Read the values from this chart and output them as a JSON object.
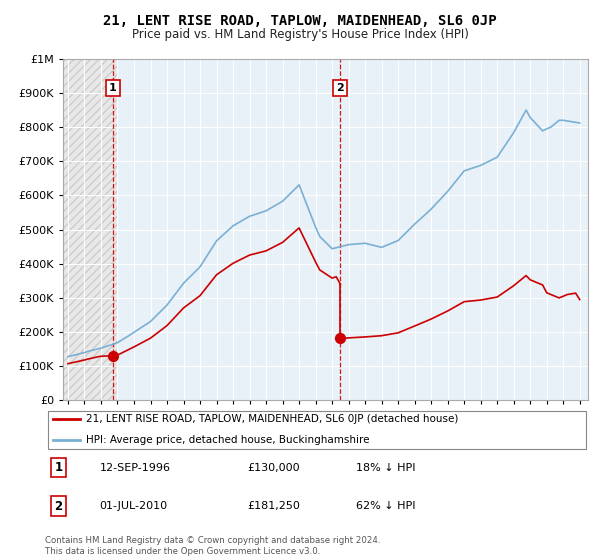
{
  "title": "21, LENT RISE ROAD, TAPLOW, MAIDENHEAD, SL6 0JP",
  "subtitle": "Price paid vs. HM Land Registry's House Price Index (HPI)",
  "legend_label_red": "21, LENT RISE ROAD, TAPLOW, MAIDENHEAD, SL6 0JP (detached house)",
  "legend_label_blue": "HPI: Average price, detached house, Buckinghamshire",
  "annotation1_date": "12-SEP-1996",
  "annotation1_price": "£130,000",
  "annotation1_hpi": "18% ↓ HPI",
  "annotation2_date": "01-JUL-2010",
  "annotation2_price": "£181,250",
  "annotation2_hpi": "62% ↓ HPI",
  "footer": "Contains HM Land Registry data © Crown copyright and database right 2024.\nThis data is licensed under the Open Government Licence v3.0.",
  "ylim": [
    0,
    1000000
  ],
  "yticks": [
    0,
    100000,
    200000,
    300000,
    400000,
    500000,
    600000,
    700000,
    800000,
    900000,
    1000000
  ],
  "ytick_labels": [
    "£0",
    "£100K",
    "£200K",
    "£300K",
    "£400K",
    "£500K",
    "£600K",
    "£700K",
    "£800K",
    "£900K",
    "£1M"
  ],
  "red_color": "#cc0000",
  "blue_color": "#7ab0d4",
  "vline_color": "#cc0000",
  "bg_hatch_color": "#e8e8e8",
  "bg_blue_color": "#e8f0f8",
  "dot1_x": 1996.71,
  "dot1_y": 130000,
  "dot2_x": 2010.5,
  "dot2_y": 181250,
  "sale1_x": 1996.71,
  "sale2_x": 2010.5,
  "xlim_left": 1993.7,
  "xlim_right": 2025.5,
  "hpi_x": [
    1994.0,
    1994.08,
    1994.17,
    1994.25,
    1994.33,
    1994.42,
    1994.5,
    1994.58,
    1994.67,
    1994.75,
    1994.83,
    1994.92,
    1995.0,
    1995.08,
    1995.17,
    1995.25,
    1995.33,
    1995.42,
    1995.5,
    1995.58,
    1995.67,
    1995.75,
    1995.83,
    1995.92,
    1996.0,
    1996.08,
    1996.17,
    1996.25,
    1996.33,
    1996.42,
    1996.5,
    1996.58,
    1996.67,
    1996.75,
    1996.83,
    1996.92,
    1997.0,
    1997.17,
    1997.33,
    1997.5,
    1997.67,
    1997.83,
    1998.0,
    1998.25,
    1998.5,
    1998.75,
    1999.0,
    1999.25,
    1999.5,
    1999.75,
    2000.0,
    2000.25,
    2000.5,
    2000.75,
    2001.0,
    2001.25,
    2001.5,
    2001.75,
    2002.0,
    2002.25,
    2002.5,
    2002.75,
    2003.0,
    2003.25,
    2003.5,
    2003.75,
    2004.0,
    2004.25,
    2004.5,
    2004.75,
    2005.0,
    2005.25,
    2005.5,
    2005.75,
    2006.0,
    2006.25,
    2006.5,
    2006.75,
    2007.0,
    2007.25,
    2007.5,
    2007.75,
    2008.0,
    2008.25,
    2008.5,
    2008.75,
    2009.0,
    2009.25,
    2009.5,
    2009.75,
    2010.0,
    2010.25,
    2010.5,
    2010.75,
    2011.0,
    2011.25,
    2011.5,
    2011.75,
    2012.0,
    2012.25,
    2012.5,
    2012.75,
    2013.0,
    2013.25,
    2013.5,
    2013.75,
    2014.0,
    2014.25,
    2014.5,
    2014.75,
    2015.0,
    2015.25,
    2015.5,
    2015.75,
    2016.0,
    2016.25,
    2016.5,
    2016.75,
    2017.0,
    2017.25,
    2017.5,
    2017.75,
    2018.0,
    2018.25,
    2018.5,
    2018.75,
    2019.0,
    2019.25,
    2019.5,
    2019.75,
    2020.0,
    2020.25,
    2020.5,
    2020.75,
    2021.0,
    2021.25,
    2021.5,
    2021.75,
    2022.0,
    2022.25,
    2022.5,
    2022.75,
    2023.0,
    2023.25,
    2023.5,
    2023.75,
    2024.0,
    2024.25,
    2024.5,
    2024.75,
    2025.0
  ],
  "hpi_y": [
    128000,
    129000,
    130000,
    131000,
    132000,
    133000,
    134000,
    135000,
    136000,
    137000,
    138000,
    139000,
    140000,
    141000,
    143000,
    144000,
    145000,
    146000,
    147000,
    148000,
    149000,
    150000,
    151000,
    152000,
    153000,
    154000,
    156000,
    157000,
    158000,
    160000,
    161000,
    162000,
    163000,
    165000,
    166000,
    167000,
    169000,
    174000,
    179000,
    184000,
    189000,
    194000,
    199000,
    207000,
    215000,
    223000,
    231000,
    243000,
    255000,
    267000,
    279000,
    295000,
    311000,
    327000,
    343000,
    355000,
    367000,
    379000,
    391000,
    410000,
    429000,
    448000,
    467000,
    478000,
    489000,
    500000,
    511000,
    518000,
    525000,
    532000,
    539000,
    543000,
    547000,
    551000,
    555000,
    562000,
    569000,
    576000,
    583000,
    595000,
    607000,
    619000,
    631000,
    600000,
    569000,
    538000,
    507000,
    480000,
    468000,
    456000,
    444000,
    447000,
    450000,
    453000,
    456000,
    457000,
    458000,
    459000,
    460000,
    457000,
    454000,
    451000,
    448000,
    453000,
    458000,
    463000,
    468000,
    480000,
    492000,
    504000,
    516000,
    527000,
    538000,
    549000,
    560000,
    573000,
    586000,
    599000,
    612000,
    627000,
    642000,
    657000,
    672000,
    676000,
    680000,
    684000,
    688000,
    694000,
    700000,
    706000,
    712000,
    730000,
    748000,
    766000,
    784000,
    806000,
    828000,
    850000,
    828000,
    815000,
    802000,
    789000,
    795000,
    800000,
    810000,
    820000,
    820000,
    818000,
    816000,
    814000,
    812000
  ],
  "red_line_seg1_x": [
    1994.0,
    1994.08,
    1994.17,
    1994.25,
    1994.33,
    1994.42,
    1994.5,
    1994.58,
    1994.67,
    1994.75,
    1994.83,
    1994.92,
    1995.0,
    1995.08,
    1995.17,
    1995.25,
    1995.33,
    1995.42,
    1995.5,
    1995.58,
    1995.67,
    1995.75,
    1995.83,
    1995.92,
    1996.0,
    1996.08,
    1996.17,
    1996.25,
    1996.33,
    1996.42,
    1996.5,
    1996.58,
    1996.67,
    1996.71
  ],
  "red_line_seg1_y": [
    107600,
    108400,
    109300,
    110200,
    111100,
    112000,
    112900,
    113800,
    114700,
    115600,
    116500,
    117400,
    118300,
    119200,
    120600,
    121500,
    122400,
    123300,
    124200,
    125100,
    126000,
    126900,
    127800,
    128700,
    129100,
    129400,
    129700,
    129800,
    129900,
    130000,
    130000,
    130000,
    130000,
    130000
  ],
  "red_line_seg2_x": [
    1996.71,
    1996.75,
    1996.83,
    1996.92,
    1997.0,
    1997.17,
    1997.33,
    1997.5,
    1997.67,
    1997.83,
    1998.0,
    1998.25,
    1998.5,
    1998.75,
    1999.0,
    1999.25,
    1999.5,
    1999.75,
    2000.0,
    2000.25,
    2000.5,
    2000.75,
    2001.0,
    2001.25,
    2001.5,
    2001.75,
    2002.0,
    2002.25,
    2002.5,
    2002.75,
    2003.0,
    2003.25,
    2003.5,
    2003.75,
    2004.0,
    2004.25,
    2004.5,
    2004.75,
    2005.0,
    2005.25,
    2005.5,
    2005.75,
    2006.0,
    2006.25,
    2006.5,
    2006.75,
    2007.0,
    2007.25,
    2007.5,
    2007.75,
    2008.0,
    2008.25,
    2008.5,
    2008.75,
    2009.0,
    2009.25,
    2009.5,
    2009.75,
    2010.0,
    2010.25,
    2010.5
  ],
  "red_line_seg2_y": [
    130000,
    130300,
    131000,
    131800,
    132600,
    136600,
    140600,
    144600,
    148600,
    152600,
    156600,
    163000,
    169400,
    175800,
    182200,
    191400,
    200600,
    209800,
    219000,
    231900,
    244800,
    257700,
    270600,
    279600,
    288600,
    297600,
    306600,
    321900,
    337200,
    352500,
    367800,
    376200,
    384600,
    393000,
    401400,
    407400,
    413400,
    419400,
    425400,
    428500,
    431600,
    434700,
    437800,
    444000,
    450200,
    456400,
    462600,
    473200,
    483800,
    494400,
    505000,
    480000,
    455000,
    430000,
    405000,
    382000,
    374000,
    366000,
    358000,
    362000,
    340000
  ],
  "red_line_seg3_x": [
    2010.5,
    2010.75,
    2011.0,
    2011.25,
    2011.5,
    2011.75,
    2012.0,
    2012.25,
    2012.5,
    2012.75,
    2013.0,
    2013.25,
    2013.5,
    2013.75,
    2014.0,
    2014.25,
    2014.5,
    2014.75,
    2015.0,
    2015.25,
    2015.5,
    2015.75,
    2016.0,
    2016.25,
    2016.5,
    2016.75,
    2017.0,
    2017.25,
    2017.5,
    2017.75,
    2018.0,
    2018.25,
    2018.5,
    2018.75,
    2019.0,
    2019.25,
    2019.5,
    2019.75,
    2020.0,
    2020.25,
    2020.5,
    2020.75,
    2021.0,
    2021.25,
    2021.5,
    2021.75,
    2022.0,
    2022.25,
    2022.5,
    2022.75,
    2023.0,
    2023.25,
    2023.5,
    2023.75,
    2024.0,
    2024.25,
    2024.5,
    2024.75,
    2025.0
  ],
  "red_line_seg3_y": [
    181250,
    182000,
    183000,
    183700,
    184400,
    185100,
    185800,
    186700,
    187600,
    188500,
    189400,
    191500,
    193600,
    195700,
    197800,
    202800,
    207800,
    212800,
    217800,
    222900,
    228000,
    233100,
    238200,
    244100,
    250000,
    255900,
    261800,
    268600,
    275400,
    282200,
    289000,
    290200,
    291400,
    292600,
    293800,
    296000,
    298200,
    300400,
    302600,
    310900,
    319200,
    327500,
    335800,
    345700,
    355600,
    365500,
    353000,
    348000,
    343000,
    338000,
    315000,
    310000,
    305000,
    300000,
    305000,
    310000,
    312000,
    314000,
    295000
  ]
}
